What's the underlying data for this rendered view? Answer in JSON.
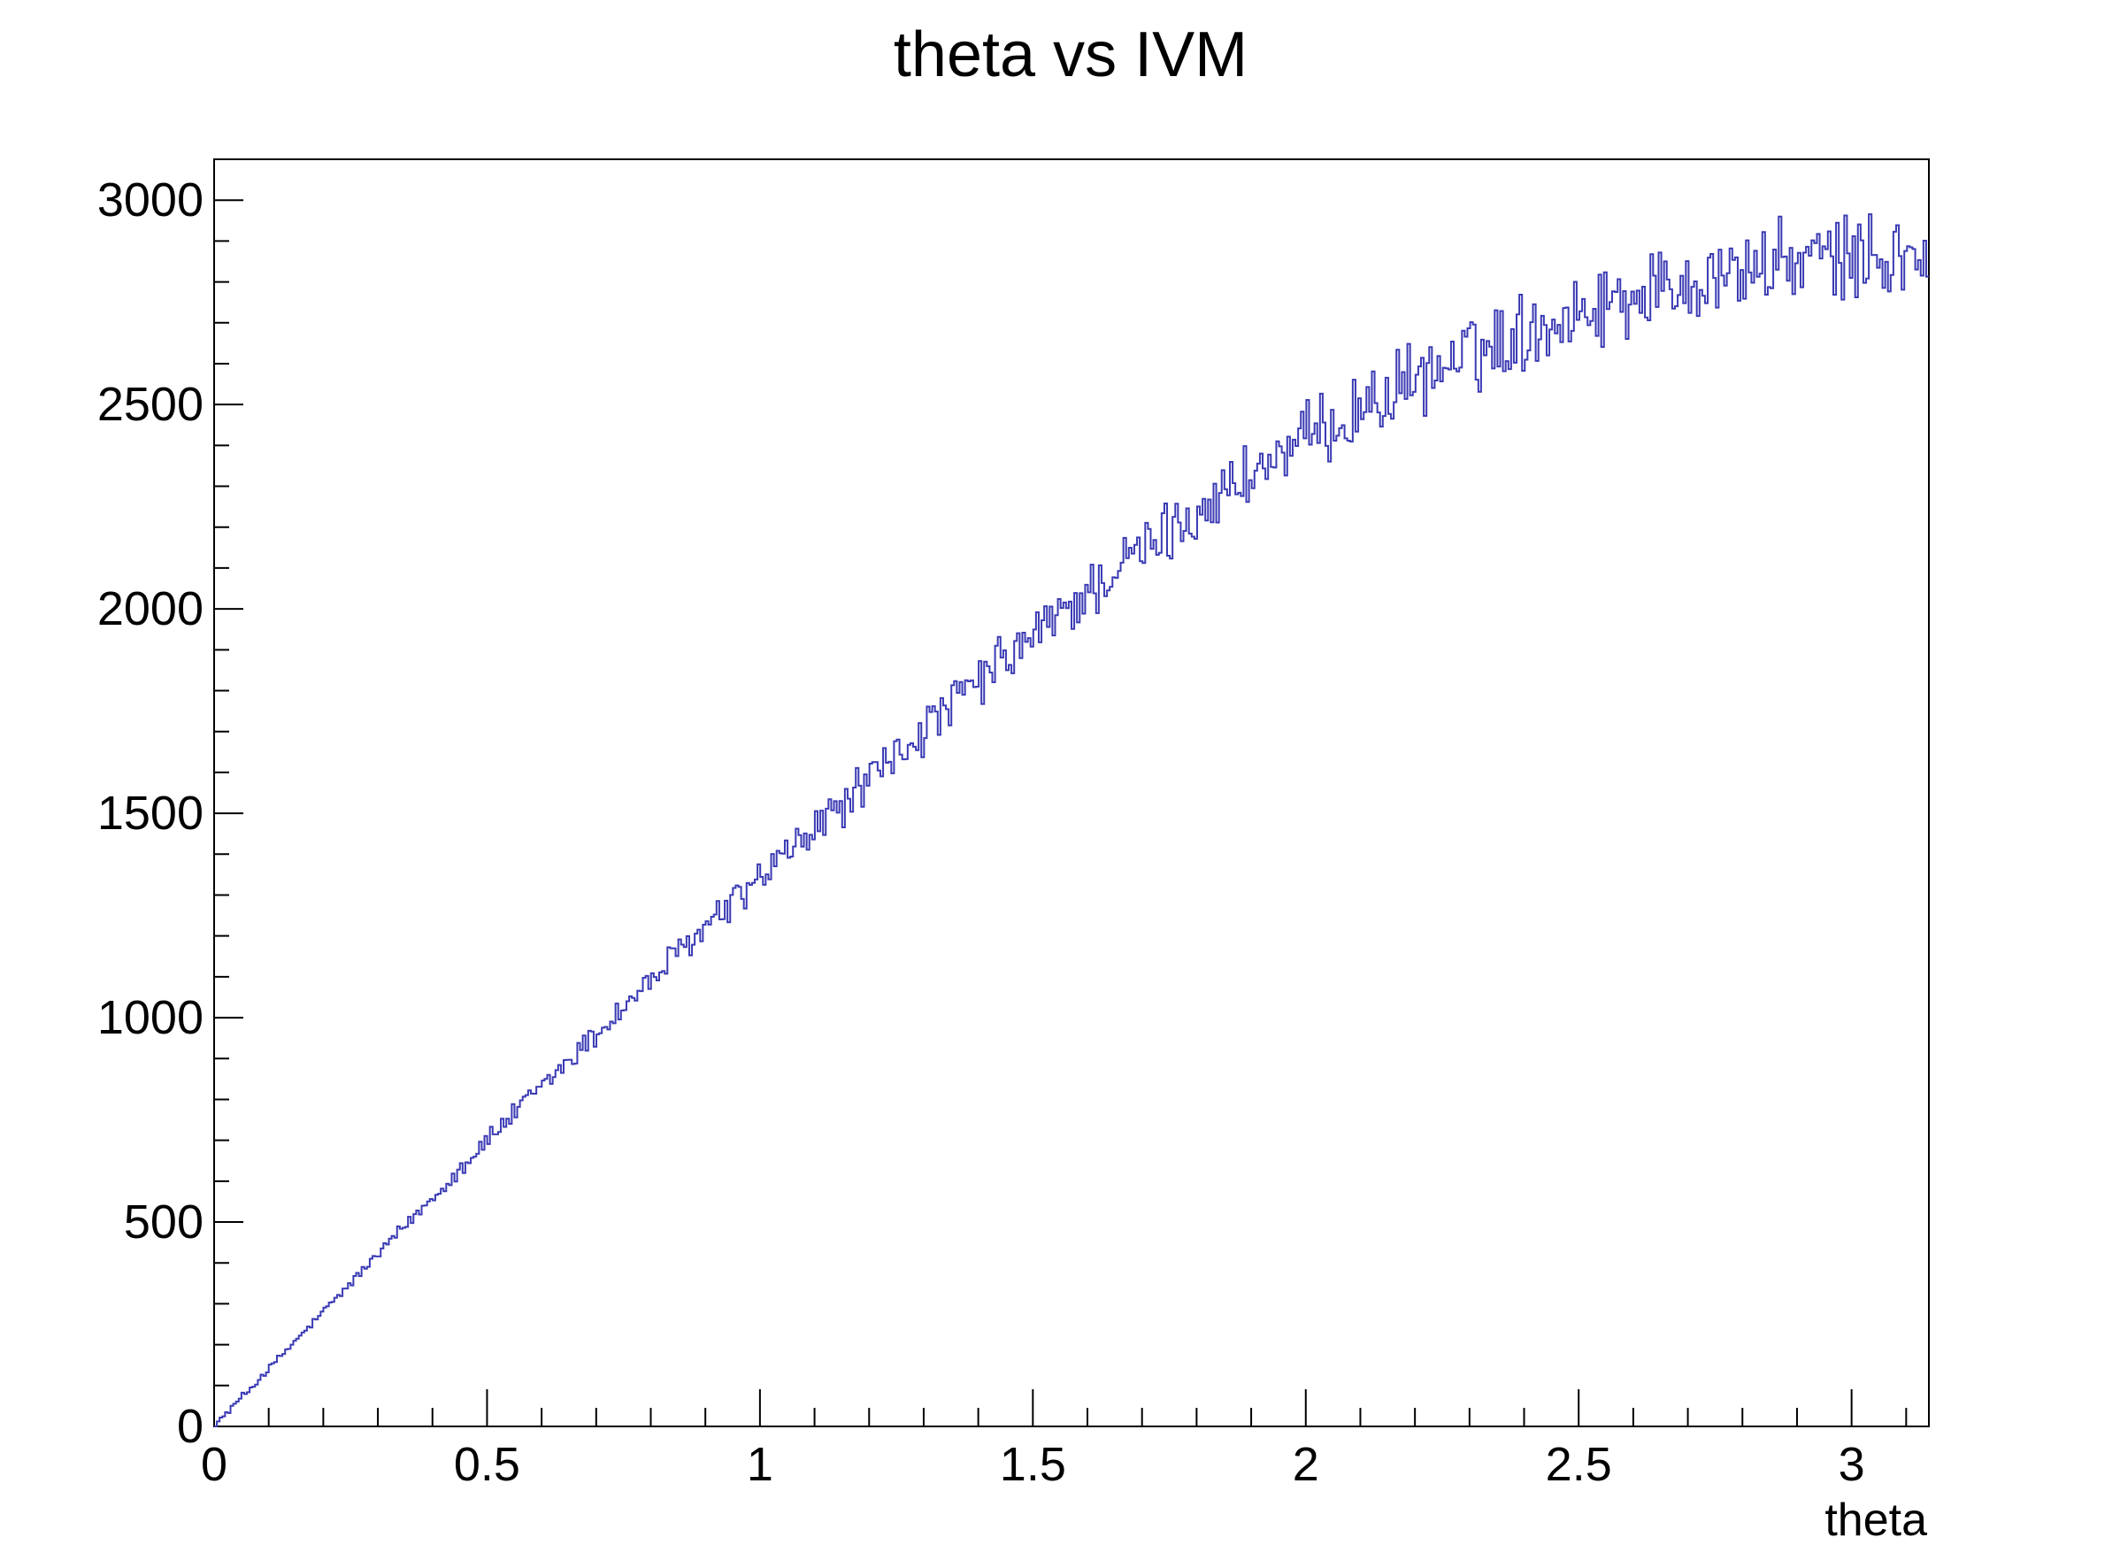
{
  "chart_data": {
    "type": "line",
    "style": "step-histogram",
    "title": "theta vs IVM",
    "xlabel": "theta",
    "ylabel": "",
    "xlim": [
      0,
      3.1416
    ],
    "ylim": [
      0,
      3100
    ],
    "x_ticks": [
      0,
      0.5,
      1,
      1.5,
      2,
      2.5,
      3
    ],
    "x_tick_labels": [
      "0",
      "0.5",
      "1",
      "1.5",
      "2",
      "2.5",
      "3"
    ],
    "y_ticks": [
      0,
      500,
      1000,
      1500,
      2000,
      2500,
      3000
    ],
    "y_tick_labels": [
      "0",
      "500",
      "1000",
      "1500",
      "2000",
      "2500",
      "3000"
    ],
    "grid": false,
    "legend": "none",
    "line_color": "#3a3ab4",
    "series": [
      {
        "x": [
          0,
          0.1,
          0.2,
          0.3,
          0.4,
          0.5,
          0.6,
          0.7,
          0.8,
          0.9,
          1.0,
          1.1,
          1.2,
          1.3,
          1.4,
          1.5,
          1.6,
          1.7,
          1.8,
          1.9,
          2.0,
          2.1,
          2.2,
          2.3,
          2.4,
          2.5,
          2.6,
          2.7,
          2.8,
          2.9,
          3.0,
          3.1,
          3.1416
        ],
        "y": [
          0,
          140,
          280,
          420,
          560,
          700,
          830,
          960,
          1090,
          1220,
          1340,
          1460,
          1580,
          1700,
          1820,
          1930,
          2040,
          2140,
          2240,
          2330,
          2410,
          2490,
          2560,
          2620,
          2680,
          2730,
          2770,
          2800,
          2830,
          2850,
          2860,
          2860,
          2850
        ]
      }
    ]
  }
}
